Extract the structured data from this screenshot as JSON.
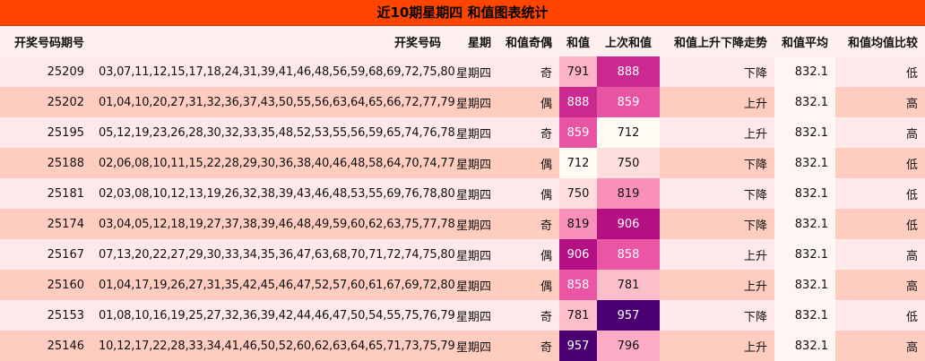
{
  "title": "近10期星期四 和值图表统计",
  "headers": {
    "issue": "开奖号码期号",
    "numbers": "开奖号码",
    "weekday": "星期",
    "parity": "和值奇偶",
    "sum": "和值",
    "prev_sum": "上次和值",
    "trend": "和值上升下降走势",
    "avg": "和值平均",
    "compare": "和值均值比较"
  },
  "colors": {
    "title_bg": "#ff4500",
    "row_odd": "#ffe8ea",
    "row_even": "#ffcdbf",
    "heat_low": "#fffaf4",
    "heat_high": "#4a0070"
  },
  "chart_data": {
    "type": "table",
    "title": "近10期星期四 和值图表统计",
    "columns": [
      "开奖号码期号",
      "开奖号码",
      "星期",
      "和值奇偶",
      "和值",
      "上次和值",
      "和值上升下降走势",
      "和值平均",
      "和值均值比较"
    ],
    "heat_range": [
      712,
      957
    ],
    "rows": [
      {
        "issue": "25209",
        "numbers": "03,07,11,12,15,17,18,24,31,39,41,46,48,56,59,68,69,72,75,80",
        "weekday": "星期四",
        "parity": "奇",
        "sum": 791,
        "prev_sum": 888,
        "trend": "下降",
        "avg": "832.1",
        "compare": "低"
      },
      {
        "issue": "25202",
        "numbers": "01,04,10,20,27,31,32,36,37,43,50,55,56,63,64,65,66,72,77,79",
        "weekday": "星期四",
        "parity": "偶",
        "sum": 888,
        "prev_sum": 859,
        "trend": "上升",
        "avg": "832.1",
        "compare": "高"
      },
      {
        "issue": "25195",
        "numbers": "05,12,19,23,26,28,30,32,33,35,48,52,53,55,56,59,65,74,76,78",
        "weekday": "星期四",
        "parity": "奇",
        "sum": 859,
        "prev_sum": 712,
        "trend": "上升",
        "avg": "832.1",
        "compare": "高"
      },
      {
        "issue": "25188",
        "numbers": "02,06,08,10,11,15,22,28,29,30,36,38,40,46,48,58,64,70,74,77",
        "weekday": "星期四",
        "parity": "偶",
        "sum": 712,
        "prev_sum": 750,
        "trend": "下降",
        "avg": "832.1",
        "compare": "低"
      },
      {
        "issue": "25181",
        "numbers": "02,03,08,10,12,13,19,26,32,38,39,43,46,48,53,55,69,76,78,80",
        "weekday": "星期四",
        "parity": "偶",
        "sum": 750,
        "prev_sum": 819,
        "trend": "下降",
        "avg": "832.1",
        "compare": "低"
      },
      {
        "issue": "25174",
        "numbers": "03,04,05,12,18,19,27,37,38,39,46,48,49,59,60,62,63,75,77,78",
        "weekday": "星期四",
        "parity": "奇",
        "sum": 819,
        "prev_sum": 906,
        "trend": "下降",
        "avg": "832.1",
        "compare": "低"
      },
      {
        "issue": "25167",
        "numbers": "07,13,20,22,27,29,30,33,34,35,36,47,63,68,70,71,72,74,75,80",
        "weekday": "星期四",
        "parity": "偶",
        "sum": 906,
        "prev_sum": 858,
        "trend": "上升",
        "avg": "832.1",
        "compare": "高"
      },
      {
        "issue": "25160",
        "numbers": "01,04,17,19,26,27,31,35,42,45,46,47,52,57,60,61,67,69,72,80",
        "weekday": "星期四",
        "parity": "偶",
        "sum": 858,
        "prev_sum": 781,
        "trend": "上升",
        "avg": "832.1",
        "compare": "高"
      },
      {
        "issue": "25153",
        "numbers": "01,08,10,16,19,25,27,32,36,39,42,44,46,47,50,54,55,75,76,79",
        "weekday": "星期四",
        "parity": "奇",
        "sum": 781,
        "prev_sum": 957,
        "trend": "下降",
        "avg": "832.1",
        "compare": "低"
      },
      {
        "issue": "25146",
        "numbers": "10,12,17,22,28,33,34,41,46,50,52,60,62,63,64,65,71,73,75,79",
        "weekday": "星期四",
        "parity": "奇",
        "sum": 957,
        "prev_sum": 796,
        "trend": "上升",
        "avg": "832.1",
        "compare": "高"
      }
    ]
  }
}
